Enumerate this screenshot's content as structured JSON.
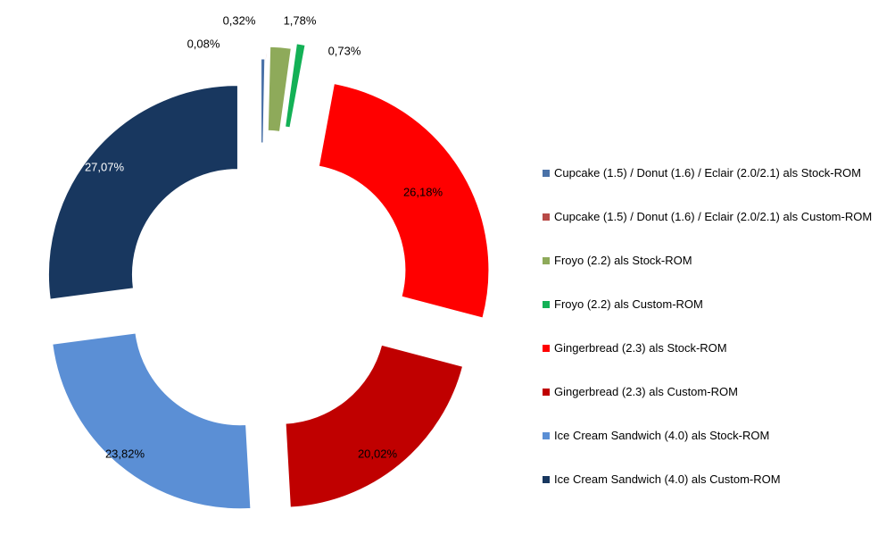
{
  "chart_data": {
    "type": "pie",
    "variant": "exploded-doughnut",
    "title": "",
    "legend_position": "right",
    "series": [
      {
        "name": "Cupcake (1.5) / Donut (1.6) / Eclair (2.0/2.1) als Stock-ROM",
        "value": 0.32,
        "label": "0,32%",
        "color": "#4A72A8"
      },
      {
        "name": "Cupcake (1.5) / Donut (1.6) / Eclair (2.0/2.1) als Custom-ROM",
        "value": 0.08,
        "label": "0,08%",
        "color": "#B84A47"
      },
      {
        "name": "Froyo (2.2) als Stock-ROM",
        "value": 1.78,
        "label": "1,78%",
        "color": "#8EAA5A"
      },
      {
        "name": "Froyo (2.2) als Custom-ROM",
        "value": 0.73,
        "label": "0,73%",
        "color": "#13B156"
      },
      {
        "name": "Gingerbread (2.3) als Stock-ROM",
        "value": 26.18,
        "label": "26,18%",
        "color": "#FF0000"
      },
      {
        "name": "Gingerbread (2.3) als Custom-ROM",
        "value": 20.02,
        "label": "20,02%",
        "color": "#C00000"
      },
      {
        "name": "Ice Cream Sandwich (4.0) als Stock-ROM",
        "value": 23.82,
        "label": "23,82%",
        "color": "#5B8FD5"
      },
      {
        "name": "Ice Cream Sandwich (4.0) als Custom-ROM",
        "value": 27.07,
        "label": "27,07%",
        "color": "#18375F"
      }
    ]
  }
}
